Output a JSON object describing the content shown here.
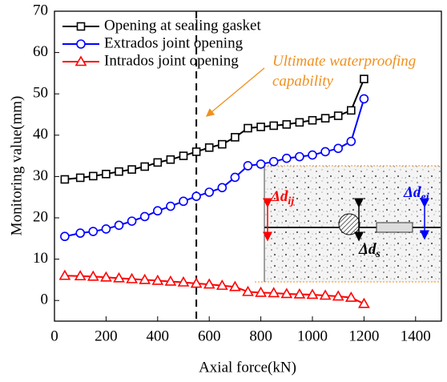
{
  "chart_data": {
    "type": "line",
    "xlabel": "Axial force(kN)",
    "ylabel": "Monitoring value(mm)",
    "x": [
      40,
      100,
      150,
      200,
      250,
      300,
      350,
      400,
      450,
      500,
      550,
      600,
      650,
      700,
      750,
      800,
      850,
      900,
      950,
      1000,
      1050,
      1100,
      1150,
      1200
    ],
    "series": [
      {
        "name": "Opening at sealing gasket",
        "color": "#000000",
        "marker": "square",
        "values": [
          29.3,
          29.7,
          30.1,
          30.6,
          31.2,
          31.7,
          32.4,
          33.4,
          34.1,
          35.0,
          36.0,
          37.0,
          37.8,
          39.5,
          41.7,
          42.0,
          42.3,
          42.6,
          43.1,
          43.6,
          44.1,
          44.7,
          46.0,
          53.6
        ]
      },
      {
        "name": "Extrados joint opening",
        "color": "#0000ff",
        "marker": "circle",
        "values": [
          15.5,
          16.3,
          16.7,
          17.3,
          18.2,
          19.2,
          20.3,
          21.7,
          22.8,
          24.0,
          25.2,
          26.2,
          27.3,
          29.8,
          32.6,
          33.0,
          33.6,
          34.4,
          34.8,
          35.2,
          36.0,
          36.8,
          38.5,
          48.8
        ]
      },
      {
        "name": "Intrados joint opening",
        "color": "#ff0000",
        "marker": "triangle",
        "values": [
          6.0,
          5.9,
          5.8,
          5.6,
          5.4,
          5.2,
          5.0,
          4.8,
          4.6,
          4.4,
          4.1,
          3.9,
          3.6,
          3.3,
          2.1,
          1.9,
          1.8,
          1.6,
          1.5,
          1.4,
          1.2,
          1.0,
          0.7,
          -0.8
        ]
      }
    ],
    "xlim": [
      0,
      1500
    ],
    "xticks": [
      0,
      200,
      400,
      600,
      800,
      1000,
      1200,
      1400
    ],
    "ylim": [
      -5,
      70
    ],
    "yticks": [
      0,
      10,
      20,
      30,
      40,
      50,
      60,
      70
    ],
    "vline": 550,
    "annotation": {
      "lines": [
        "Ultimate waterproofing",
        "capability"
      ],
      "color": "#f0901e"
    },
    "inset_labels": [
      {
        "main": "Δd",
        "sub": "ij",
        "color": "#ff0000"
      },
      {
        "main": "Δd",
        "sub": "ej",
        "color": "#0000ff"
      },
      {
        "main": "Δd",
        "sub": "s",
        "color": "#000000"
      }
    ]
  }
}
